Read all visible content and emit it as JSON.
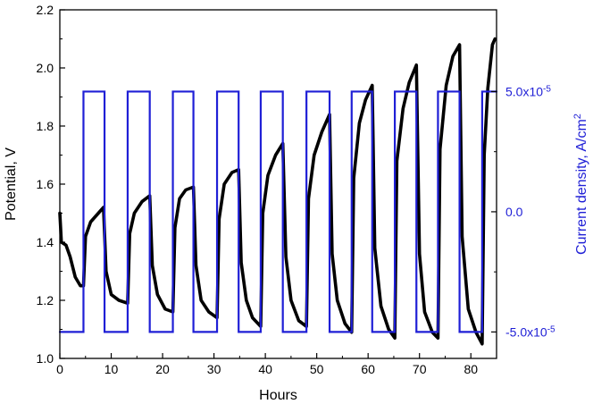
{
  "chart_data": {
    "type": "line",
    "xlabel": "Hours",
    "ylabel_left": "Potential, V",
    "ylabel_right": "Current density, A/cm",
    "ylabel_right_sup": "2",
    "xlim": [
      0,
      85
    ],
    "ylim_left": [
      1.0,
      2.2
    ],
    "ylim_right": [
      -6.1e-05,
      8.4e-05
    ],
    "x_ticks": [
      0,
      10,
      20,
      30,
      40,
      50,
      60,
      70,
      80
    ],
    "x_tick_labels": [
      "0",
      "10",
      "20",
      "30",
      "40",
      "50",
      "60",
      "70",
      "80"
    ],
    "y_left_ticks": [
      1.0,
      1.2,
      1.4,
      1.6,
      1.8,
      2.0,
      2.2
    ],
    "y_left_tick_labels": [
      "1.0",
      "1.2",
      "1.4",
      "1.6",
      "1.8",
      "2.0",
      "2.2"
    ],
    "y_right_ticks": [
      -5e-05,
      0,
      5e-05
    ],
    "y_right_tick_labels": [
      {
        "base": "-5.0x10",
        "exp": "-5"
      },
      {
        "base": "0.0",
        "exp": ""
      },
      {
        "base": "5.0x10",
        "exp": "-5"
      }
    ],
    "grid": false,
    "colors": {
      "potential": "#000000",
      "current": "#1f1fd6",
      "axis": "#000000"
    },
    "series": [
      {
        "axis": "left",
        "values": [
          [
            0,
            1.5
          ],
          [
            0.3,
            1.4
          ],
          [
            1.2,
            1.39
          ],
          [
            2,
            1.35
          ],
          [
            3,
            1.28
          ],
          [
            4,
            1.25
          ],
          [
            4.6,
            1.25
          ],
          [
            5,
            1.42
          ],
          [
            6,
            1.47
          ],
          [
            7,
            1.49
          ],
          [
            8.5,
            1.52
          ],
          [
            9,
            1.3
          ],
          [
            10,
            1.22
          ],
          [
            11.5,
            1.2
          ],
          [
            13.2,
            1.19
          ],
          [
            13.6,
            1.43
          ],
          [
            14.5,
            1.5
          ],
          [
            16,
            1.54
          ],
          [
            17.5,
            1.56
          ],
          [
            18,
            1.32
          ],
          [
            19,
            1.22
          ],
          [
            20.5,
            1.17
          ],
          [
            22,
            1.16
          ],
          [
            22.4,
            1.45
          ],
          [
            23.3,
            1.55
          ],
          [
            24.5,
            1.58
          ],
          [
            26,
            1.59
          ],
          [
            26.5,
            1.32
          ],
          [
            27.5,
            1.2
          ],
          [
            29,
            1.16
          ],
          [
            30.6,
            1.14
          ],
          [
            31,
            1.48
          ],
          [
            32,
            1.6
          ],
          [
            33.5,
            1.64
          ],
          [
            34.8,
            1.65
          ],
          [
            35.3,
            1.33
          ],
          [
            36.3,
            1.2
          ],
          [
            37.5,
            1.14
          ],
          [
            39.1,
            1.11
          ],
          [
            39.5,
            1.5
          ],
          [
            40.5,
            1.63
          ],
          [
            42,
            1.7
          ],
          [
            43.4,
            1.74
          ],
          [
            44,
            1.35
          ],
          [
            45,
            1.2
          ],
          [
            46.5,
            1.13
          ],
          [
            48,
            1.11
          ],
          [
            48.4,
            1.55
          ],
          [
            49.5,
            1.7
          ],
          [
            51,
            1.78
          ],
          [
            52.5,
            1.84
          ],
          [
            53,
            1.36
          ],
          [
            54,
            1.2
          ],
          [
            55.5,
            1.12
          ],
          [
            56.8,
            1.09
          ],
          [
            57.2,
            1.62
          ],
          [
            58.3,
            1.81
          ],
          [
            59.5,
            1.89
          ],
          [
            60.8,
            1.94
          ],
          [
            61.3,
            1.38
          ],
          [
            62.5,
            1.18
          ],
          [
            64,
            1.1
          ],
          [
            65.2,
            1.07
          ],
          [
            65.6,
            1.68
          ],
          [
            66.8,
            1.86
          ],
          [
            68,
            1.95
          ],
          [
            69.4,
            2.01
          ],
          [
            70,
            1.36
          ],
          [
            71,
            1.16
          ],
          [
            72.5,
            1.09
          ],
          [
            73.6,
            1.07
          ],
          [
            74,
            1.72
          ],
          [
            75.2,
            1.94
          ],
          [
            76.5,
            2.04
          ],
          [
            77.8,
            2.08
          ],
          [
            78.3,
            1.42
          ],
          [
            79.5,
            1.17
          ],
          [
            81,
            1.09
          ],
          [
            82.2,
            1.05
          ],
          [
            82.6,
            1.7
          ],
          [
            83.3,
            1.93
          ],
          [
            84.2,
            2.08
          ],
          [
            84.7,
            2.1
          ]
        ]
      },
      {
        "axis": "right",
        "values": [
          [
            0,
            -5e-05
          ],
          [
            4.6,
            -5e-05
          ],
          [
            4.6,
            5e-05
          ],
          [
            8.7,
            5e-05
          ],
          [
            8.7,
            -5e-05
          ],
          [
            13.2,
            -5e-05
          ],
          [
            13.2,
            5e-05
          ],
          [
            17.5,
            5e-05
          ],
          [
            17.5,
            -5e-05
          ],
          [
            22,
            -5e-05
          ],
          [
            22,
            5e-05
          ],
          [
            26,
            5e-05
          ],
          [
            26,
            -5e-05
          ],
          [
            30.6,
            -5e-05
          ],
          [
            30.6,
            5e-05
          ],
          [
            34.8,
            5e-05
          ],
          [
            34.8,
            -5e-05
          ],
          [
            39.1,
            -5e-05
          ],
          [
            39.1,
            5e-05
          ],
          [
            43.4,
            5e-05
          ],
          [
            43.4,
            -5e-05
          ],
          [
            48,
            -5e-05
          ],
          [
            48,
            5e-05
          ],
          [
            52.5,
            5e-05
          ],
          [
            52.5,
            -5e-05
          ],
          [
            56.8,
            -5e-05
          ],
          [
            56.8,
            5e-05
          ],
          [
            60.8,
            5e-05
          ],
          [
            60.8,
            -5e-05
          ],
          [
            65.2,
            -5e-05
          ],
          [
            65.2,
            5e-05
          ],
          [
            69.4,
            5e-05
          ],
          [
            69.4,
            -5e-05
          ],
          [
            73.6,
            -5e-05
          ],
          [
            73.6,
            5e-05
          ],
          [
            77.8,
            5e-05
          ],
          [
            77.8,
            -5e-05
          ],
          [
            82.2,
            -5e-05
          ],
          [
            82.2,
            5e-05
          ],
          [
            85,
            5e-05
          ]
        ]
      }
    ]
  }
}
